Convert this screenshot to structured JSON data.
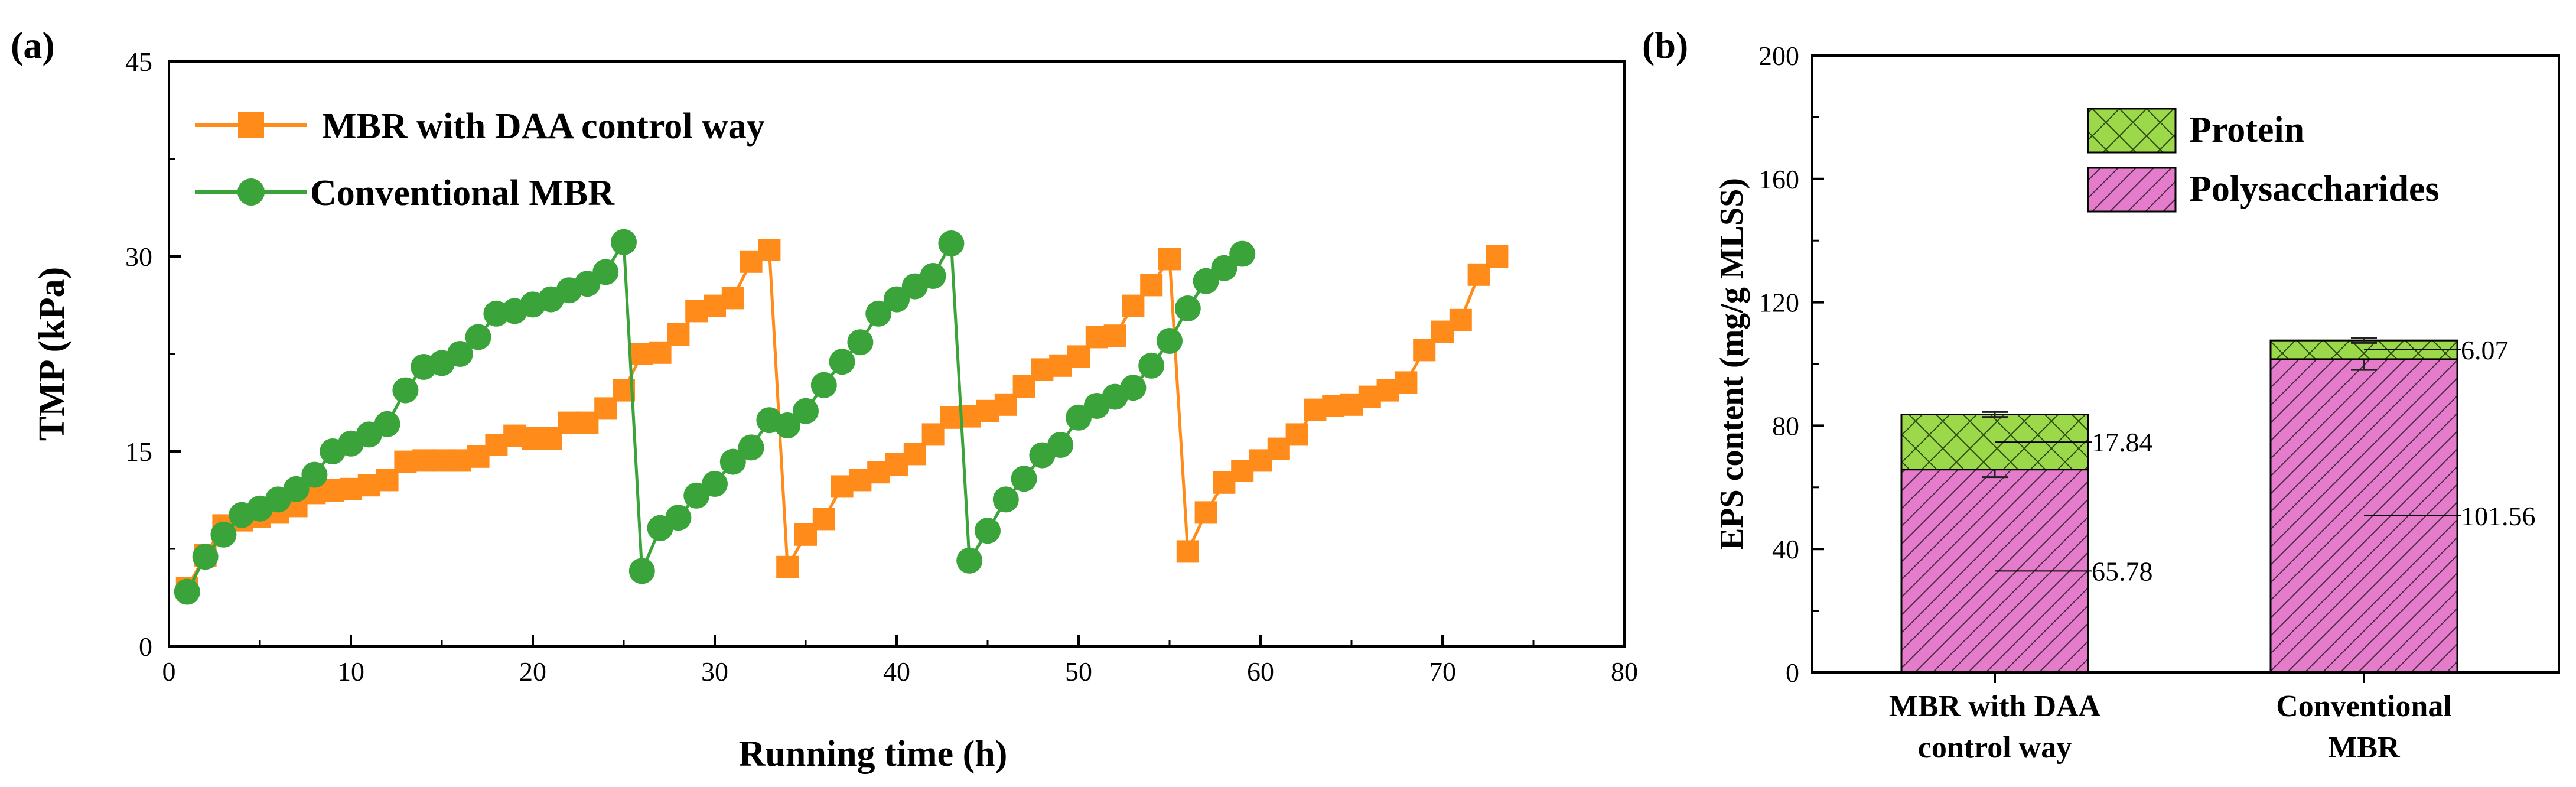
{
  "figure": {
    "panel_a_label": "(a)",
    "panel_b_label": "(b)"
  },
  "colors": {
    "orange": "#FF8C1A",
    "green": "#3AA33A",
    "pink": "#E57BCB",
    "lime": "#9BD94B"
  },
  "chart_data": [
    {
      "type": "line",
      "title": "",
      "xlabel": "Running time (h)",
      "ylabel": "TMP (kPa)",
      "xlim": [
        0,
        80
      ],
      "ylim": [
        0,
        45
      ],
      "xticks": [
        0,
        10,
        20,
        30,
        40,
        50,
        60,
        70,
        80
      ],
      "yticks": [
        0,
        15,
        30,
        45
      ],
      "legend_position": "top-left",
      "series": [
        {
          "name": "MBR with DAA control way",
          "marker": "square",
          "color": "#FF8C1A",
          "x": [
            1,
            2,
            3,
            4,
            5,
            6,
            7,
            8,
            9,
            10,
            11,
            12,
            13,
            14,
            15,
            16,
            17,
            18,
            19,
            20,
            21,
            22,
            23,
            24,
            25,
            26,
            27,
            28,
            29,
            30,
            31,
            32,
            33,
            34,
            35,
            36,
            37,
            38,
            39,
            40,
            41,
            42,
            43,
            44,
            45,
            46,
            47,
            48,
            49,
            50,
            51,
            52,
            53,
            54,
            55,
            56,
            57,
            58,
            59,
            60,
            61,
            62,
            63,
            64,
            65,
            66,
            67,
            68,
            69,
            70,
            71,
            72,
            73
          ],
          "y": [
            4.5,
            7.0,
            9.3,
            9.7,
            10.0,
            10.3,
            10.8,
            11.8,
            12.0,
            12.1,
            12.4,
            12.8,
            14.2,
            14.3,
            14.3,
            14.3,
            14.6,
            15.5,
            16.2,
            16.0,
            16.0,
            17.2,
            17.2,
            18.3,
            19.7,
            22.5,
            22.6,
            24.0,
            25.8,
            26.2,
            26.8,
            29.6,
            30.5,
            6.1,
            8.6,
            9.8,
            12.3,
            12.8,
            13.4,
            14.0,
            14.8,
            16.3,
            17.6,
            17.7,
            18.1,
            18.6,
            20.0,
            21.3,
            21.6,
            22.3,
            23.8,
            23.9,
            26.2,
            27.8,
            29.8,
            7.3,
            10.3,
            12.6,
            13.5,
            14.3,
            15.2,
            16.3,
            18.2,
            18.5,
            18.6,
            19.2,
            19.7,
            20.3,
            22.8,
            24.2,
            25.1,
            28.6,
            30.0
          ]
        },
        {
          "name": "Conventional MBR",
          "marker": "circle",
          "color": "#3AA33A",
          "x": [
            1,
            2,
            3,
            4,
            5,
            6,
            7,
            8,
            9,
            10,
            11,
            12,
            13,
            14,
            15,
            16,
            17,
            18,
            19,
            20,
            21,
            22,
            23,
            24,
            25,
            26,
            27,
            28,
            29,
            30,
            31,
            32,
            33,
            34,
            35,
            36,
            37,
            38,
            39,
            40,
            41,
            42,
            43,
            44,
            45,
            46,
            47,
            48,
            49,
            50,
            51,
            52,
            53,
            54,
            55,
            56,
            57,
            58,
            59
          ],
          "y": [
            4.2,
            6.9,
            8.6,
            10.1,
            10.6,
            11.3,
            12.1,
            13.2,
            15.0,
            15.6,
            16.3,
            17.1,
            19.7,
            21.5,
            21.8,
            22.5,
            23.8,
            25.6,
            25.8,
            26.3,
            26.7,
            27.4,
            27.9,
            28.8,
            31.1,
            5.8,
            9.1,
            9.9,
            11.6,
            12.5,
            14.2,
            15.3,
            17.4,
            17.0,
            18.1,
            20.1,
            21.9,
            23.4,
            25.6,
            26.7,
            27.7,
            28.5,
            31.0,
            6.6,
            8.9,
            11.3,
            12.9,
            14.7,
            15.5,
            17.6,
            18.5,
            19.2,
            19.9,
            21.6,
            23.5,
            26.0,
            28.1,
            29.1,
            30.2
          ]
        }
      ]
    },
    {
      "type": "bar",
      "stacked": true,
      "title": "",
      "xlabel": "",
      "ylabel": "EPS content (mg/g MLSS)",
      "ylim": [
        0,
        200
      ],
      "yticks": [
        0,
        40,
        80,
        120,
        160,
        200
      ],
      "legend_position": "top-right",
      "categories": [
        [
          "MBR with DAA",
          "control way"
        ],
        [
          "Conventional",
          "MBR"
        ]
      ],
      "series": [
        {
          "name": "Polysaccharides",
          "color": "#E57BCB",
          "pattern": "diagonal-hatch",
          "values": [
            65.78,
            101.56
          ],
          "errors": [
            2.5,
            3.5
          ],
          "labels": [
            "65.78",
            "101.56"
          ]
        },
        {
          "name": "Protein",
          "color": "#9BD94B",
          "pattern": "cross-hatch",
          "values": [
            17.84,
            6.07
          ],
          "errors": [
            0.8,
            0.8
          ],
          "labels": [
            "17.84",
            "6.07"
          ]
        }
      ]
    }
  ]
}
